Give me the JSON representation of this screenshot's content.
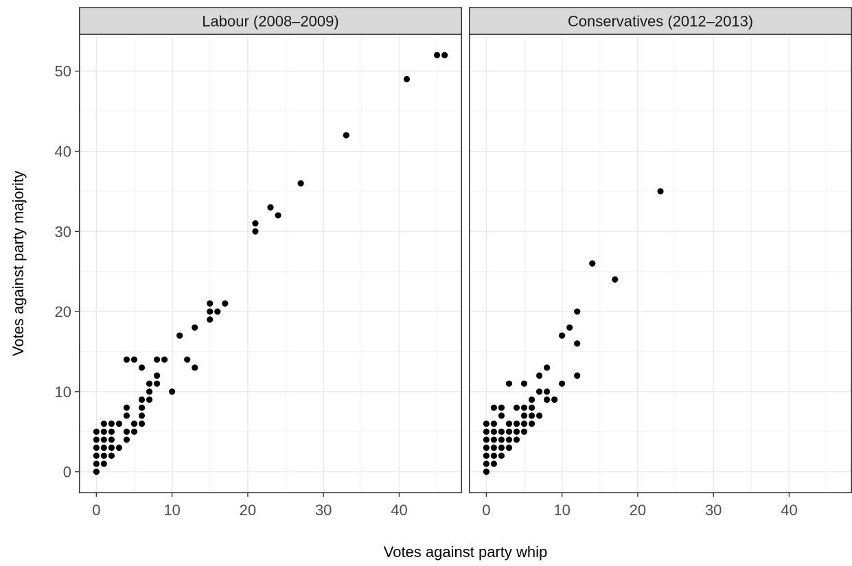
{
  "chart_data": {
    "type": "scatter",
    "xlabel": "Votes against party whip",
    "ylabel": "Votes against party majority",
    "xlim": [
      -2.3,
      48.3
    ],
    "ylim": [
      -2.6,
      54.6
    ],
    "x_ticks": [
      0,
      10,
      20,
      30,
      40
    ],
    "y_ticks": [
      0,
      10,
      20,
      30,
      40,
      50
    ],
    "grid": true,
    "colors": {
      "point": "#000000",
      "panel_border": "#333333",
      "strip_fill": "#d9d9d9",
      "grid_major": "#ebebeb",
      "grid_minor": "#f3f3f3",
      "tick_text": "#4d4d4d"
    },
    "panels": [
      {
        "title": "Labour (2008–2009)",
        "points": [
          [
            0,
            0
          ],
          [
            0,
            1
          ],
          [
            0,
            2
          ],
          [
            0,
            3
          ],
          [
            0,
            4
          ],
          [
            0,
            5
          ],
          [
            1,
            1
          ],
          [
            1,
            2
          ],
          [
            1,
            3
          ],
          [
            1,
            4
          ],
          [
            1,
            5
          ],
          [
            1,
            6
          ],
          [
            2,
            2
          ],
          [
            2,
            3
          ],
          [
            2,
            4
          ],
          [
            2,
            5
          ],
          [
            2,
            6
          ],
          [
            3,
            3
          ],
          [
            3,
            6
          ],
          [
            4,
            4
          ],
          [
            4,
            5
          ],
          [
            4,
            7
          ],
          [
            4,
            8
          ],
          [
            4,
            14
          ],
          [
            5,
            5
          ],
          [
            5,
            6
          ],
          [
            5,
            14
          ],
          [
            6,
            6
          ],
          [
            6,
            7
          ],
          [
            6,
            8
          ],
          [
            6,
            9
          ],
          [
            6,
            13
          ],
          [
            7,
            9
          ],
          [
            7,
            10
          ],
          [
            7,
            11
          ],
          [
            8,
            11
          ],
          [
            8,
            12
          ],
          [
            8,
            14
          ],
          [
            9,
            14
          ],
          [
            10,
            10
          ],
          [
            11,
            17
          ],
          [
            12,
            14
          ],
          [
            13,
            13
          ],
          [
            13,
            18
          ],
          [
            15,
            19
          ],
          [
            15,
            20
          ],
          [
            15,
            21
          ],
          [
            16,
            20
          ],
          [
            17,
            21
          ],
          [
            21,
            30
          ],
          [
            21,
            31
          ],
          [
            23,
            33
          ],
          [
            24,
            32
          ],
          [
            27,
            36
          ],
          [
            33,
            42
          ],
          [
            41,
            49
          ],
          [
            45,
            52
          ],
          [
            46,
            52
          ]
        ]
      },
      {
        "title": "Conservatives (2012–2013)",
        "points": [
          [
            0,
            0
          ],
          [
            0,
            1
          ],
          [
            0,
            2
          ],
          [
            0,
            3
          ],
          [
            0,
            4
          ],
          [
            0,
            5
          ],
          [
            0,
            6
          ],
          [
            1,
            1
          ],
          [
            1,
            2
          ],
          [
            1,
            3
          ],
          [
            1,
            4
          ],
          [
            1,
            5
          ],
          [
            1,
            6
          ],
          [
            1,
            8
          ],
          [
            2,
            2
          ],
          [
            2,
            3
          ],
          [
            2,
            4
          ],
          [
            2,
            5
          ],
          [
            2,
            7
          ],
          [
            2,
            8
          ],
          [
            3,
            3
          ],
          [
            3,
            4
          ],
          [
            3,
            5
          ],
          [
            3,
            6
          ],
          [
            3,
            11
          ],
          [
            4,
            4
          ],
          [
            4,
            5
          ],
          [
            4,
            6
          ],
          [
            4,
            8
          ],
          [
            5,
            5
          ],
          [
            5,
            6
          ],
          [
            5,
            7
          ],
          [
            5,
            8
          ],
          [
            5,
            11
          ],
          [
            6,
            6
          ],
          [
            6,
            7
          ],
          [
            6,
            8
          ],
          [
            6,
            9
          ],
          [
            7,
            7
          ],
          [
            7,
            10
          ],
          [
            7,
            12
          ],
          [
            8,
            9
          ],
          [
            8,
            10
          ],
          [
            8,
            13
          ],
          [
            9,
            9
          ],
          [
            10,
            11
          ],
          [
            10,
            17
          ],
          [
            11,
            18
          ],
          [
            12,
            12
          ],
          [
            12,
            16
          ],
          [
            12,
            20
          ],
          [
            14,
            26
          ],
          [
            17,
            24
          ],
          [
            23,
            35
          ]
        ]
      }
    ]
  }
}
